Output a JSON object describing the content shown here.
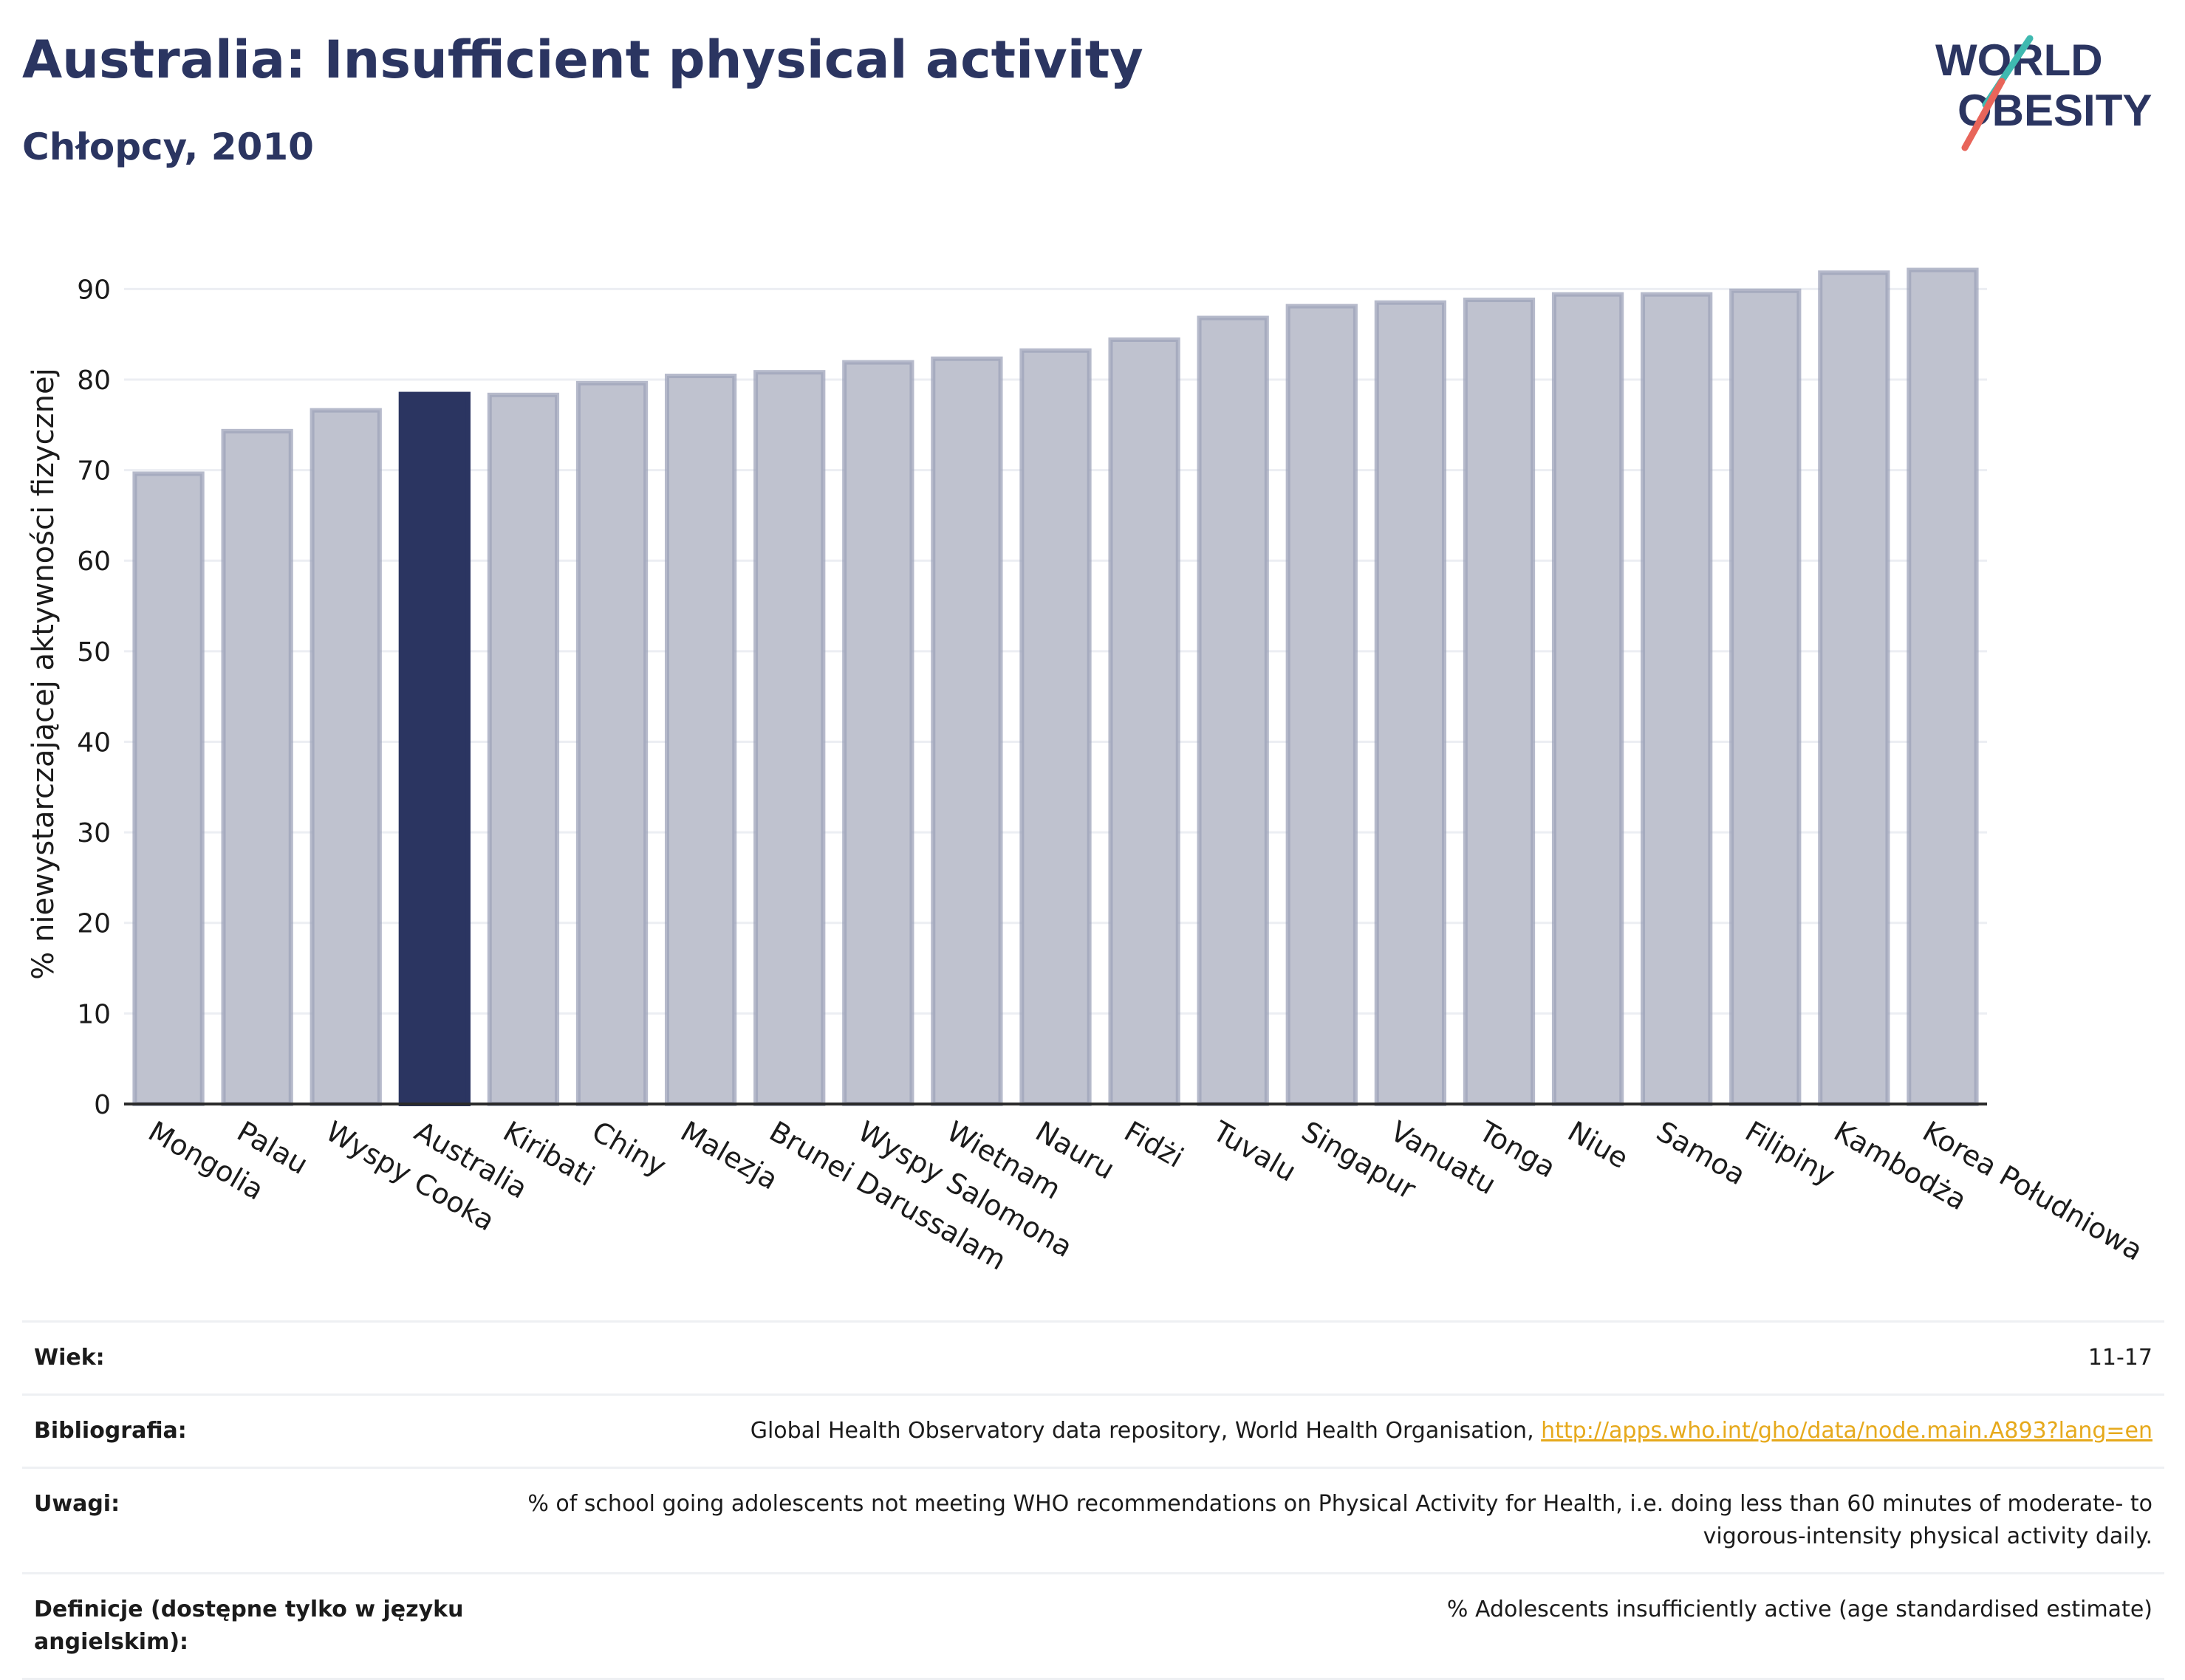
{
  "header": {
    "title": "Australia: Insufficient physical activity",
    "subtitle": "Chłopcy, 2010"
  },
  "logo": {
    "line1": "WORLD",
    "line2": "OBESITY",
    "colors": [
      "#2b3561",
      "#3fb9b0",
      "#e8655a"
    ]
  },
  "colors": {
    "bar": "#bfc2cf",
    "bar_stroke": "#9da3b9",
    "highlight": "#2b3561",
    "grid": "#eceef3",
    "axis": "#2b2b2b"
  },
  "chart_data": {
    "type": "bar",
    "title": "Australia: Insufficient physical activity",
    "subtitle": "Chłopcy, 2010",
    "ylabel": "% niewystarczającej aktywności fizycznej",
    "xlabel": "",
    "ylim": [
      0,
      95
    ],
    "yticks": [
      0,
      10,
      20,
      30,
      40,
      50,
      60,
      70,
      80,
      90
    ],
    "grid": true,
    "highlight": "Australia",
    "categories": [
      "Mongolia",
      "Palau",
      "Wyspy Cooka",
      "Australia",
      "Kiribati",
      "Chiny",
      "Malezja",
      "Brunei Darussalam",
      "Wyspy Salomona",
      "Wietnam",
      "Nauru",
      "Fidżi",
      "Tuvalu",
      "Singapur",
      "Vanuatu",
      "Tonga",
      "Niue",
      "Samoa",
      "Filipiny",
      "Kambodża",
      "Korea Południowa"
    ],
    "values": [
      69.6,
      74.3,
      76.6,
      78.4,
      78.3,
      79.6,
      80.4,
      80.8,
      81.9,
      82.3,
      83.2,
      84.4,
      86.8,
      88.1,
      88.5,
      88.8,
      89.4,
      89.4,
      89.8,
      91.8,
      92.1
    ]
  },
  "meta": {
    "age_label": "Wiek:",
    "age_value": "11-17",
    "biblio_label": "Bibliografia:",
    "biblio_value": "Global Health Observatory data repository, World Health Organisation, ",
    "biblio_link": "http://apps.who.int/gho/data/node.main.A893?lang=en",
    "notes_label": "Uwagi:",
    "notes_value": "% of school going adolescents not meeting WHO recommendations on Physical Activity for Health, i.e. doing less than 60 minutes of moderate- to vigorous-intensity physical activity daily.",
    "def_label": "Definicje (dostępne tylko w języku angielskim):",
    "def_value": "% Adolescents insufficiently active (age standardised estimate)"
  }
}
